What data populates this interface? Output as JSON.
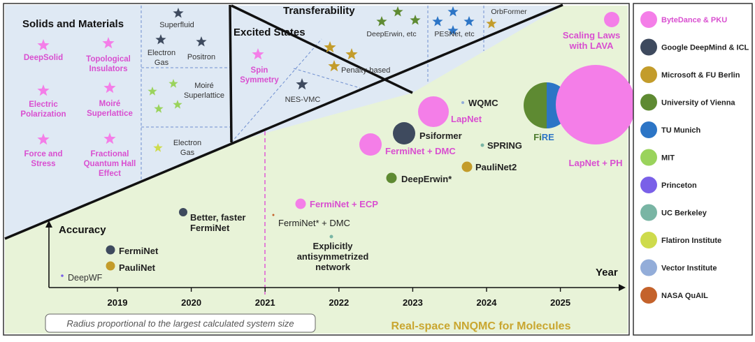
{
  "chart_data": {
    "type": "scatter",
    "title": "Real-space NNQMC for Molecules",
    "xlabel": "Year",
    "ylabel": "Accuracy",
    "xlim": [
      2018.2,
      2026.0
    ],
    "x_ticks": [
      "2019",
      "2020",
      "2021",
      "2022",
      "2023",
      "2024",
      "2025"
    ],
    "note": "Radius proportional to the largest calculated system size",
    "legend_position": "right",
    "legend": [
      {
        "name": "ByteDance & PKU",
        "color": "#f47ee8"
      },
      {
        "name": "Google DeepMind & ICL",
        "color": "#3e4a5e"
      },
      {
        "name": "Microsoft & FU Berlin",
        "color": "#c39c2b"
      },
      {
        "name": "University of Vienna",
        "color": "#5e8a32"
      },
      {
        "name": "TU Munich",
        "color": "#2c75c6"
      },
      {
        "name": "MIT",
        "color": "#9ad35c"
      },
      {
        "name": "Princeton",
        "color": "#7a60e8"
      },
      {
        "name": "UC Berkeley",
        "color": "#79b5a4"
      },
      {
        "name": "Flatiron Institute",
        "color": "#cedb4c"
      },
      {
        "name": "Vector Institute",
        "color": "#93add9"
      },
      {
        "name": "NASA QuAIL",
        "color": "#c4622b"
      }
    ],
    "points": [
      {
        "label": "DeepWF",
        "group": "Princeton",
        "x": 2018.4,
        "y": 0.04
      },
      {
        "label": "FermiNet",
        "group": "Google DeepMind & ICL",
        "x": 2018.93,
        "y": 0.17
      },
      {
        "label": "PauliNet",
        "group": "Microsoft & FU Berlin",
        "x": 2018.93,
        "y": 0.11
      },
      {
        "label": "Better, faster FermiNet",
        "group": "Google DeepMind & ICL",
        "x": 2019.85,
        "y": 0.42
      },
      {
        "label": "FermiNet* + DMC",
        "group": "NASA QuAIL",
        "x": 2021.1,
        "y": 0.41
      },
      {
        "label": "Explicitly antisymmetrized network",
        "group": "UC Berkeley",
        "x": 2021.9,
        "y": 0.31
      },
      {
        "label": "FermiNet + ECP",
        "group": "ByteDance & PKU",
        "x": 2021.5,
        "y": 0.48
      },
      {
        "label": "DeepErwin*",
        "group": "University of Vienna",
        "x": 2022.7,
        "y": 0.64
      },
      {
        "label": "FermiNet + DMC",
        "group": "ByteDance & PKU",
        "x": 2022.45,
        "y": 0.81
      },
      {
        "label": "Psiformer",
        "group": "Google DeepMind & ICL",
        "x": 2022.85,
        "y": 0.89
      },
      {
        "label": "LapNet",
        "group": "ByteDance & PKU",
        "x": 2023.25,
        "y": 1.03
      },
      {
        "label": "WQMC",
        "group": "Vector Institute",
        "x": 2023.65,
        "y": 1.09
      },
      {
        "label": "SPRING",
        "group": "UC Berkeley",
        "x": 2023.9,
        "y": 0.79
      },
      {
        "label": "PauliNet2",
        "group": "Microsoft & FU Berlin",
        "x": 2023.7,
        "y": 0.71
      },
      {
        "label": "FiRE",
        "groups": [
          "University of Vienna",
          "TU Munich"
        ],
        "x": 2024.75,
        "y": 1.07
      },
      {
        "label": "LapNet + PH",
        "group": "ByteDance & PKU",
        "x": 2025.55,
        "y": 1.01
      },
      {
        "label": "Scaling Laws with LAVA",
        "group": "ByteDance & PKU",
        "x": 2025.7,
        "y": 1.55
      }
    ],
    "regions": {
      "solids": {
        "title": "Solids and Materials",
        "items": [
          {
            "label": "DeepSolid",
            "group": "ByteDance & PKU"
          },
          {
            "label": "Topological Insulators",
            "group": "ByteDance & PKU"
          },
          {
            "label": "Electric Polarization",
            "group": "ByteDance & PKU"
          },
          {
            "label": "Moiré Superlattice",
            "group": "ByteDance & PKU"
          },
          {
            "label": "Force and Stress",
            "group": "ByteDance & PKU"
          },
          {
            "label": "Fractional Quantum Hall Effect",
            "group": "ByteDance & PKU"
          },
          {
            "label": "Superfluid",
            "group": "Google DeepMind & ICL"
          },
          {
            "label": "Electron Gas",
            "group": "Google DeepMind & ICL"
          },
          {
            "label": "Positron",
            "group": "Google DeepMind & ICL"
          },
          {
            "label": "Moiré Superlattice",
            "group": "MIT"
          },
          {
            "label": "Electron Gas",
            "group": "Flatiron Institute"
          }
        ]
      },
      "excited": {
        "title": "Excited States",
        "items": [
          {
            "label": "Spin Symmetry",
            "group": "ByteDance & PKU"
          },
          {
            "label": "Penalty-based",
            "group": "Microsoft & FU Berlin"
          },
          {
            "label": "NES-VMC",
            "group": "Google DeepMind & ICL"
          }
        ]
      },
      "transfer": {
        "title": "Transferability",
        "items": [
          {
            "label": "DeepErwin, etc",
            "group": "University of Vienna"
          },
          {
            "label": "PESNet, etc",
            "group": "TU Munich"
          },
          {
            "label": "OrbFormer",
            "group": "Microsoft & FU Berlin"
          }
        ]
      }
    }
  }
}
